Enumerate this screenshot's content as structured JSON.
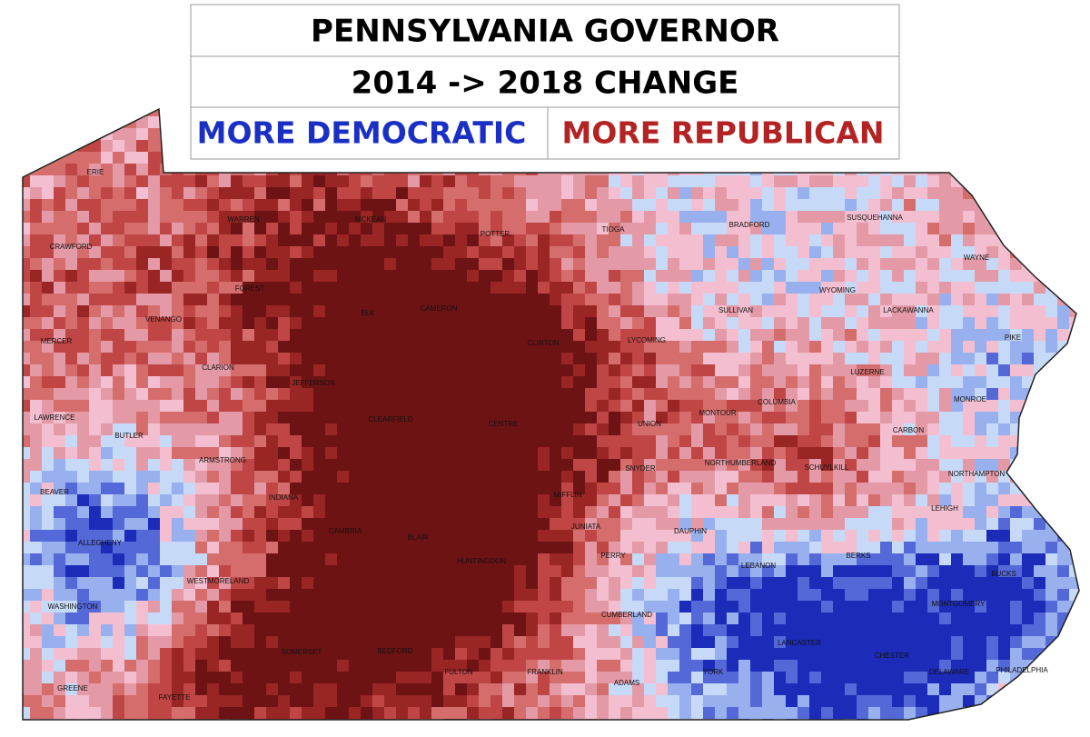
{
  "header": {
    "title": "PENNSYLVANIA GOVERNOR",
    "subtitle": "2014 -> 2018 CHANGE",
    "legend": [
      "MORE DEMOCRATIC",
      "MORE REPUBLICAN"
    ]
  },
  "counties": [
    "ERIE",
    "CRAWFORD",
    "WARREN",
    "MCKEAN",
    "POTTER",
    "TIOGA",
    "BRADFORD",
    "SUSQUEHANNA",
    "WAYNE",
    "FOREST",
    "VENANGO",
    "MERCER",
    "ELK",
    "CAMERON",
    "CLINTON",
    "LYCOMING",
    "SULLIVAN",
    "WYOMING",
    "LACKAWANNA",
    "PIKE",
    "CLARION",
    "JEFFERSON",
    "LUZERNE",
    "COLUMBIA",
    "MONTOUR",
    "MONROE",
    "LAWRENCE",
    "BUTLER",
    "CLEARFIELD",
    "CENTRE",
    "UNION",
    "CARBON",
    "ARMSTRONG",
    "SNYDER",
    "NORTHUMBERLAND",
    "SCHUYLKILL",
    "NORTHAMPTON",
    "BEAVER",
    "INDIANA",
    "MIFFLIN",
    "LEHIGH",
    "ALLEGHENY",
    "JUNIATA",
    "CAMBRIA",
    "BLAIR",
    "DAUPHIN",
    "PERRY",
    "BERKS",
    "WESTMORELAND",
    "HUNTINGDON",
    "LEBANON",
    "BUCKS",
    "WASHINGTON",
    "MONTGOMERY",
    "CUMBERLAND",
    "LANCASTER",
    "SOMERSET",
    "BEDFORD",
    "CHESTER",
    "FAYETTE",
    "GREENE",
    "FULTON",
    "FRANKLIN",
    "ADAMS",
    "YORK",
    "DELAWARE",
    "PHILADELPHIA"
  ]
}
